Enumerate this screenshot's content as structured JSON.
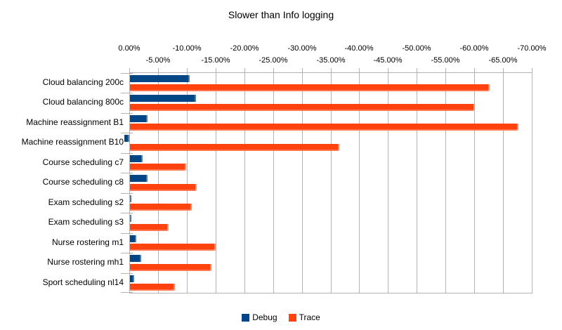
{
  "title": "Slower than Info logging",
  "legend_position": "bottom",
  "colors": {
    "debug": "#004586",
    "trace": "#FF420E",
    "grid": "#b3b3b3",
    "text": "#000000",
    "background": "#ffffff"
  },
  "chart_data": {
    "type": "bar",
    "orientation": "horizontal",
    "title": "Slower than Info logging",
    "grid": true,
    "legend_position": "bottom",
    "categories": [
      "Cloud balancing 200c",
      "Cloud balancing 800c",
      "Machine reassignment B1",
      "Machine reassignment B10",
      "Course scheduling c7",
      "Course scheduling c8",
      "Exam scheduling s2",
      "Exam scheduling s3",
      "Nurse rostering m1",
      "Nurse rostering mh1",
      "Sport scheduling nl14"
    ],
    "series": [
      {
        "name": "Debug",
        "color": "#004586",
        "values": [
          -10.4,
          -11.5,
          -3.0,
          0.8,
          -2.2,
          -3.0,
          -0.3,
          -0.2,
          -1.1,
          -1.9,
          -0.7
        ]
      },
      {
        "name": "Trace",
        "color": "#FF420E",
        "values": [
          -62.6,
          -60.0,
          -67.6,
          -36.4,
          -9.8,
          -11.6,
          -10.8,
          -6.7,
          -14.9,
          -14.2,
          -7.8
        ]
      }
    ],
    "x_axis": {
      "unit": "%",
      "range": [
        0,
        -70
      ],
      "tick_step": -5,
      "staggered_labels": true,
      "tick_values": [
        0,
        -5,
        -10,
        -15,
        -20,
        -25,
        -30,
        -35,
        -40,
        -45,
        -50,
        -55,
        -60,
        -65,
        -70
      ],
      "tick_labels": [
        "0.00%",
        "-5.00%",
        "-10.00%",
        "-15.00%",
        "-20.00%",
        "-25.00%",
        "-30.00%",
        "-35.00%",
        "-40.00%",
        "-45.00%",
        "-50.00%",
        "-55.00%",
        "-60.00%",
        "-65.00%",
        "-70.00%"
      ]
    }
  }
}
